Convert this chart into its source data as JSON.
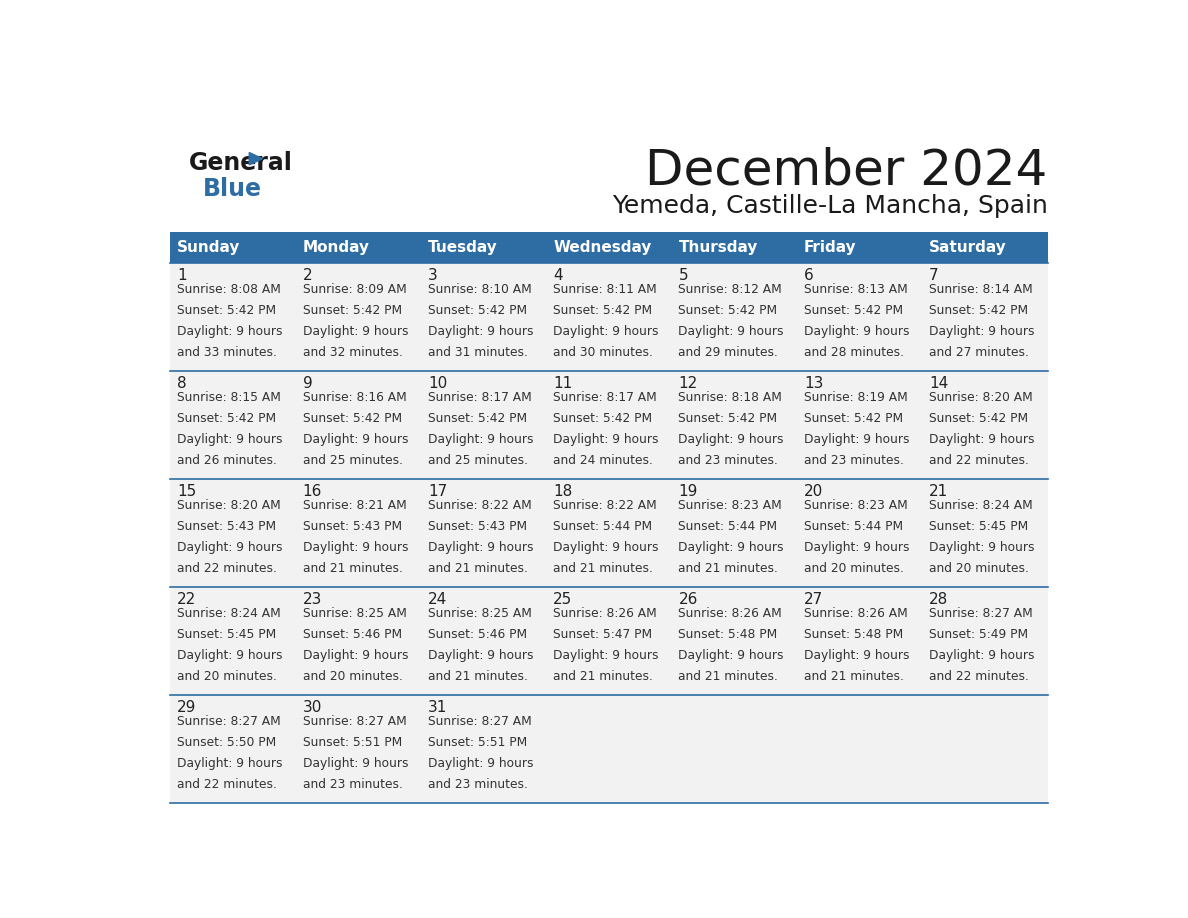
{
  "title": "December 2024",
  "subtitle": "Yemeda, Castille-La Mancha, Spain",
  "header_color": "#2E6DA4",
  "header_text_color": "#FFFFFF",
  "cell_bg_color": "#F2F2F2",
  "cell_text_color": "#333333",
  "day_number_color": "#222222",
  "grid_line_color": "#2E6DA4",
  "days_of_week": [
    "Sunday",
    "Monday",
    "Tuesday",
    "Wednesday",
    "Thursday",
    "Friday",
    "Saturday"
  ],
  "weeks": [
    [
      {
        "day": 1,
        "sunrise": "8:08 AM",
        "sunset": "5:42 PM",
        "daylight": "9 hours and 33 minutes."
      },
      {
        "day": 2,
        "sunrise": "8:09 AM",
        "sunset": "5:42 PM",
        "daylight": "9 hours and 32 minutes."
      },
      {
        "day": 3,
        "sunrise": "8:10 AM",
        "sunset": "5:42 PM",
        "daylight": "9 hours and 31 minutes."
      },
      {
        "day": 4,
        "sunrise": "8:11 AM",
        "sunset": "5:42 PM",
        "daylight": "9 hours and 30 minutes."
      },
      {
        "day": 5,
        "sunrise": "8:12 AM",
        "sunset": "5:42 PM",
        "daylight": "9 hours and 29 minutes."
      },
      {
        "day": 6,
        "sunrise": "8:13 AM",
        "sunset": "5:42 PM",
        "daylight": "9 hours and 28 minutes."
      },
      {
        "day": 7,
        "sunrise": "8:14 AM",
        "sunset": "5:42 PM",
        "daylight": "9 hours and 27 minutes."
      }
    ],
    [
      {
        "day": 8,
        "sunrise": "8:15 AM",
        "sunset": "5:42 PM",
        "daylight": "9 hours and 26 minutes."
      },
      {
        "day": 9,
        "sunrise": "8:16 AM",
        "sunset": "5:42 PM",
        "daylight": "9 hours and 25 minutes."
      },
      {
        "day": 10,
        "sunrise": "8:17 AM",
        "sunset": "5:42 PM",
        "daylight": "9 hours and 25 minutes."
      },
      {
        "day": 11,
        "sunrise": "8:17 AM",
        "sunset": "5:42 PM",
        "daylight": "9 hours and 24 minutes."
      },
      {
        "day": 12,
        "sunrise": "8:18 AM",
        "sunset": "5:42 PM",
        "daylight": "9 hours and 23 minutes."
      },
      {
        "day": 13,
        "sunrise": "8:19 AM",
        "sunset": "5:42 PM",
        "daylight": "9 hours and 23 minutes."
      },
      {
        "day": 14,
        "sunrise": "8:20 AM",
        "sunset": "5:42 PM",
        "daylight": "9 hours and 22 minutes."
      }
    ],
    [
      {
        "day": 15,
        "sunrise": "8:20 AM",
        "sunset": "5:43 PM",
        "daylight": "9 hours and 22 minutes."
      },
      {
        "day": 16,
        "sunrise": "8:21 AM",
        "sunset": "5:43 PM",
        "daylight": "9 hours and 21 minutes."
      },
      {
        "day": 17,
        "sunrise": "8:22 AM",
        "sunset": "5:43 PM",
        "daylight": "9 hours and 21 minutes."
      },
      {
        "day": 18,
        "sunrise": "8:22 AM",
        "sunset": "5:44 PM",
        "daylight": "9 hours and 21 minutes."
      },
      {
        "day": 19,
        "sunrise": "8:23 AM",
        "sunset": "5:44 PM",
        "daylight": "9 hours and 21 minutes."
      },
      {
        "day": 20,
        "sunrise": "8:23 AM",
        "sunset": "5:44 PM",
        "daylight": "9 hours and 20 minutes."
      },
      {
        "day": 21,
        "sunrise": "8:24 AM",
        "sunset": "5:45 PM",
        "daylight": "9 hours and 20 minutes."
      }
    ],
    [
      {
        "day": 22,
        "sunrise": "8:24 AM",
        "sunset": "5:45 PM",
        "daylight": "9 hours and 20 minutes."
      },
      {
        "day": 23,
        "sunrise": "8:25 AM",
        "sunset": "5:46 PM",
        "daylight": "9 hours and 20 minutes."
      },
      {
        "day": 24,
        "sunrise": "8:25 AM",
        "sunset": "5:46 PM",
        "daylight": "9 hours and 21 minutes."
      },
      {
        "day": 25,
        "sunrise": "8:26 AM",
        "sunset": "5:47 PM",
        "daylight": "9 hours and 21 minutes."
      },
      {
        "day": 26,
        "sunrise": "8:26 AM",
        "sunset": "5:48 PM",
        "daylight": "9 hours and 21 minutes."
      },
      {
        "day": 27,
        "sunrise": "8:26 AM",
        "sunset": "5:48 PM",
        "daylight": "9 hours and 21 minutes."
      },
      {
        "day": 28,
        "sunrise": "8:27 AM",
        "sunset": "5:49 PM",
        "daylight": "9 hours and 22 minutes."
      }
    ],
    [
      {
        "day": 29,
        "sunrise": "8:27 AM",
        "sunset": "5:50 PM",
        "daylight": "9 hours and 22 minutes."
      },
      {
        "day": 30,
        "sunrise": "8:27 AM",
        "sunset": "5:51 PM",
        "daylight": "9 hours and 23 minutes."
      },
      {
        "day": 31,
        "sunrise": "8:27 AM",
        "sunset": "5:51 PM",
        "daylight": "9 hours and 23 minutes."
      },
      null,
      null,
      null,
      null
    ]
  ],
  "logo_text_general": "General",
  "logo_text_blue": "Blue",
  "logo_color_general": "#1a1a1a",
  "logo_color_blue": "#2E6DA4",
  "logo_triangle_color": "#2E6DA4",
  "fig_width": 11.88,
  "fig_height": 9.18,
  "dpi": 100
}
